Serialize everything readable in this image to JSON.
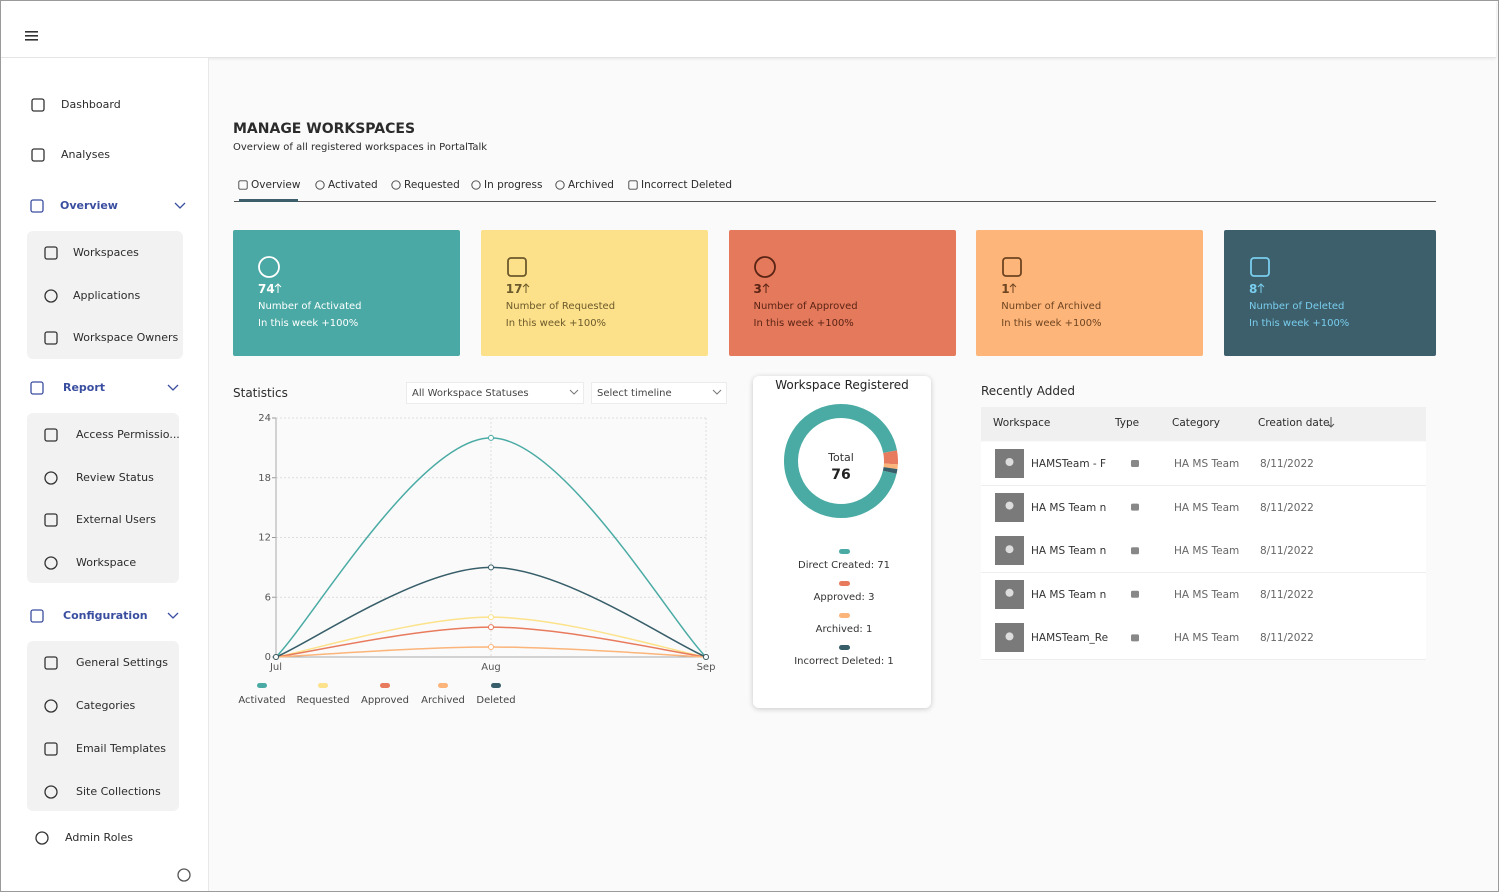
{
  "nav": [
    {
      "label": "Dashboard"
    },
    {
      "label": "Analyses"
    },
    {
      "label": "Overview",
      "children": [
        "Workspaces",
        "Applications",
        "Workspace Owners"
      ]
    },
    {
      "label": "Report",
      "children": [
        "Access Permissio...",
        "Review Status",
        "External Users",
        "Workspace"
      ]
    },
    {
      "label": "Configuration",
      "children": [
        "General Settings",
        "Categories",
        "Email Templates",
        "Site Collections"
      ]
    },
    {
      "label": "Admin Roles"
    }
  ],
  "page": {
    "title": "MANAGE WORKSPACES",
    "subtitle": "Overview of all registered workspaces in PortalTalk",
    "tabs": [
      "Overview",
      "Activated",
      "Requested",
      "In progress",
      "Archived",
      "Incorrect Deleted"
    ]
  },
  "cards": [
    {
      "value": 74,
      "label": "Number of Activated",
      "note": "In this week +100%",
      "color": "#4aa9a4",
      "text_color": "#ffffff"
    },
    {
      "value": 17,
      "label": "Number of Requested",
      "note": "In this week +100%",
      "color": "#fde08a",
      "text_color": "#6b5a2c"
    },
    {
      "value": 3,
      "label": "Number of Approved",
      "note": "In this week +100%",
      "color": "#e5795b",
      "text_color": "#5a2415"
    },
    {
      "value": 1,
      "label": "Number of Archived",
      "note": "In this week +100%",
      "color": "#fdb57a",
      "text_color": "#6e4420"
    },
    {
      "value": 8,
      "label": "Number of Deleted",
      "note": "In this week +100%",
      "color": "#3d5f6b",
      "text_color": "#79cdee"
    }
  ],
  "filters": [
    "All Workspace Statuses",
    "Select timeline"
  ],
  "chart_data": [
    {
      "type": "line",
      "title": "Statistics",
      "categories": [
        "Jul",
        "Aug",
        "Sep"
      ],
      "series": [
        {
          "name": "Activated",
          "color": "#4aaba4",
          "values": [
            0,
            22,
            0
          ]
        },
        {
          "name": "Requested",
          "color": "#fce28a",
          "values": [
            0,
            4,
            0
          ]
        },
        {
          "name": "Approved",
          "color": "#e87a5d",
          "values": [
            0,
            3,
            0
          ]
        },
        {
          "name": "Archived",
          "color": "#fbb47a",
          "values": [
            0,
            1,
            0
          ]
        },
        {
          "name": "Deleted",
          "color": "#375e69",
          "values": [
            0,
            9,
            0
          ]
        }
      ],
      "ylim": [
        0,
        24
      ],
      "yticks": [
        0,
        6,
        12,
        18,
        24
      ],
      "grid": true,
      "legend": "bottom"
    },
    {
      "type": "donut",
      "title": "Workspace Registered",
      "center_label": "Total",
      "total": 76,
      "labels": [
        "Direct Created: 71",
        "Approved: 3",
        "Archived: 1",
        "Incorrect Deleted: 1"
      ],
      "values": [
        71,
        3,
        1,
        1
      ],
      "colors": [
        "#4aaba4",
        "#e87a5d",
        "#fbb47a",
        "#375e69"
      ]
    }
  ],
  "recent": {
    "title": "Recently Added",
    "columns": [
      "Workspace",
      "Type",
      "Category",
      "Creation date"
    ],
    "rows": [
      [
        "HAMSTeam - F",
        "HA MS Team",
        "8/11/2022"
      ],
      [
        "HA MS Team n",
        "HA MS Team",
        "8/11/2022"
      ],
      [
        "HA MS Team n",
        "HA MS Team",
        "8/11/2022"
      ],
      [
        "HA MS Team n",
        "HA MS Team",
        "8/11/2022"
      ],
      [
        "HAMSTeam_Re",
        "HA MS Team",
        "8/11/2022"
      ]
    ]
  }
}
